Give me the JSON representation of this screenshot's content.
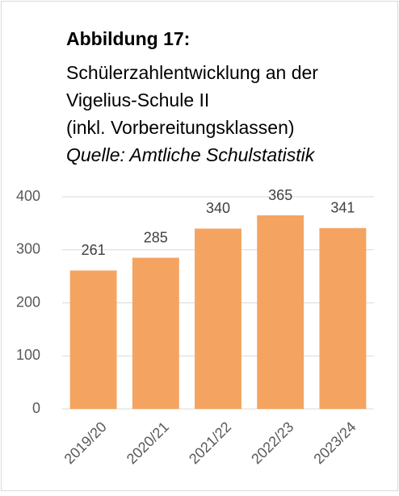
{
  "chart_data": {
    "type": "bar",
    "title": "Abbildung 17:",
    "subtitle": [
      "Schülerzahlentwicklung an der",
      "Vigelius-Schule II",
      "(inkl. Vorbereitungsklassen)"
    ],
    "source": "Quelle: Amtliche Schulstatistik",
    "categories": [
      "2019/20",
      "2020/21",
      "2021/22",
      "2022/23",
      "2023/24"
    ],
    "values": [
      261,
      285,
      340,
      365,
      341
    ],
    "color": "#f4a460",
    "ylim": [
      0,
      400
    ],
    "yticks": [
      0,
      100,
      200,
      300,
      400
    ],
    "grid": true
  }
}
